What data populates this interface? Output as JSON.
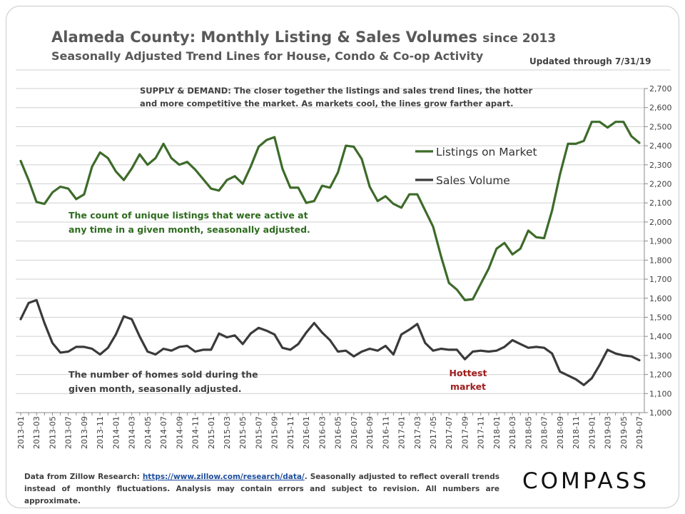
{
  "header": {
    "title": "Alameda County: Monthly Listing & Sales Volumes",
    "title_suffix": "since 2013",
    "subtitle": "Seasonally Adjusted Trend Lines for House, Condo & Co-op Activity",
    "updated": "Updated through 7/31/19"
  },
  "footer": {
    "note_prefix": "Data from Zillow Research: ",
    "link_text": "https://www.zillow.com/research/data/",
    "note_suffix": ". Seasonally adjusted to reflect overall trends instead of monthly fluctuations. Analysis may contain errors and subject to revision. All numbers are approximate.",
    "brand": "COMPASS"
  },
  "colors": {
    "listings": "#3d6b2a",
    "sales": "#3a3a3a",
    "annotation_listings": "#2e6b1e",
    "annotation_sales": "#404040",
    "hottest": "#a11d1d",
    "grid": "#d0d0d0"
  },
  "chart_data": {
    "type": "line",
    "ylim": [
      1000,
      2700
    ],
    "yticks": [
      "1,000",
      "1,100",
      "1,200",
      "1,300",
      "1,400",
      "1,500",
      "1,600",
      "1,700",
      "1,800",
      "1,900",
      "2,000",
      "2,100",
      "2,200",
      "2,300",
      "2,400",
      "2,500",
      "2,600",
      "2,700"
    ],
    "ytick_values": [
      1000,
      1100,
      1200,
      1300,
      1400,
      1500,
      1600,
      1700,
      1800,
      1900,
      2000,
      2100,
      2200,
      2300,
      2400,
      2500,
      2600,
      2700
    ],
    "x": [
      "2013-01",
      "2013-02",
      "2013-03",
      "2013-04",
      "2013-05",
      "2013-06",
      "2013-07",
      "2013-08",
      "2013-09",
      "2013-10",
      "2013-11",
      "2013-12",
      "2014-01",
      "2014-02",
      "2014-03",
      "2014-04",
      "2014-05",
      "2014-06",
      "2014-07",
      "2014-08",
      "2014-09",
      "2014-10",
      "2014-11",
      "2014-12",
      "2015-01",
      "2015-02",
      "2015-03",
      "2015-04",
      "2015-05",
      "2015-06",
      "2015-07",
      "2015-08",
      "2015-09",
      "2015-10",
      "2015-11",
      "2015-12",
      "2016-01",
      "2016-02",
      "2016-03",
      "2016-04",
      "2016-05",
      "2016-06",
      "2016-07",
      "2016-08",
      "2016-09",
      "2016-10",
      "2016-11",
      "2016-12",
      "2017-01",
      "2017-02",
      "2017-03",
      "2017-04",
      "2017-05",
      "2017-06",
      "2017-07",
      "2017-08",
      "2017-09",
      "2017-10",
      "2017-11",
      "2017-12",
      "2018-01",
      "2018-02",
      "2018-03",
      "2018-04",
      "2018-05",
      "2018-06",
      "2018-07",
      "2018-08",
      "2018-09",
      "2018-10",
      "2018-11",
      "2018-12",
      "2019-01",
      "2019-02",
      "2019-03",
      "2019-04",
      "2019-05",
      "2019-06",
      "2019-07"
    ],
    "x_tick_labels": [
      "2013-01",
      "2013-03",
      "2013-05",
      "2013-07",
      "2013-09",
      "2013-11",
      "2014-01",
      "2014-03",
      "2014-05",
      "2014-07",
      "2014-09",
      "2014-11",
      "2015-01",
      "2015-03",
      "2015-05",
      "2015-07",
      "2015-09",
      "2015-11",
      "2016-01",
      "2016-03",
      "2016-05",
      "2016-07",
      "2016-09",
      "2016-11",
      "2017-01",
      "2017-03",
      "2017-05",
      "2017-07",
      "2017-09",
      "2017-11",
      "2018-01",
      "2018-03",
      "2018-05",
      "2018-07",
      "2018-09",
      "2018-11",
      "2019-01",
      "2019-03",
      "2019-05",
      "2019-07"
    ],
    "series": [
      {
        "name": "Listings on Market",
        "values": [
          2320,
          2220,
          2105,
          2095,
          2155,
          2185,
          2175,
          2120,
          2145,
          2290,
          2365,
          2335,
          2265,
          2220,
          2280,
          2355,
          2300,
          2335,
          2410,
          2335,
          2300,
          2315,
          2275,
          2225,
          2175,
          2165,
          2220,
          2240,
          2200,
          2290,
          2395,
          2430,
          2445,
          2280,
          2180,
          2180,
          2100,
          2110,
          2190,
          2180,
          2260,
          2400,
          2395,
          2330,
          2185,
          2110,
          2135,
          2095,
          2075,
          2145,
          2145,
          2060,
          1975,
          1820,
          1680,
          1645,
          1590,
          1595,
          1675,
          1755,
          1860,
          1890,
          1830,
          1860,
          1955,
          1920,
          1915,
          2060,
          2250,
          2410,
          2410,
          2425,
          2525,
          2525,
          2495,
          2525,
          2525,
          2450,
          2415
        ]
      },
      {
        "name": "Sales Volume",
        "values": [
          1490,
          1575,
          1590,
          1470,
          1365,
          1315,
          1320,
          1345,
          1345,
          1335,
          1305,
          1340,
          1410,
          1505,
          1490,
          1400,
          1320,
          1305,
          1335,
          1325,
          1345,
          1350,
          1320,
          1330,
          1330,
          1415,
          1395,
          1405,
          1360,
          1415,
          1445,
          1430,
          1410,
          1340,
          1330,
          1360,
          1420,
          1470,
          1420,
          1380,
          1320,
          1325,
          1295,
          1320,
          1335,
          1325,
          1350,
          1305,
          1410,
          1435,
          1465,
          1365,
          1325,
          1335,
          1330,
          1330,
          1280,
          1320,
          1325,
          1320,
          1325,
          1345,
          1380,
          1360,
          1340,
          1345,
          1340,
          1310,
          1215,
          1195,
          1175,
          1145,
          1180,
          1250,
          1330,
          1310,
          1300,
          1295,
          1275
        ]
      }
    ],
    "legend": {
      "placement": "inside-right",
      "items": [
        "Listings on Market",
        "Sales Volume"
      ]
    },
    "annotations": {
      "supply_demand": [
        "SUPPLY & DEMAND: The closer together the listings and sales trend lines, the hotter",
        "and more competitive the market. As markets cool, the lines grow farther apart."
      ],
      "listings_note": [
        "The count of unique listings that were active at",
        "any time in a given month, seasonally adjusted."
      ],
      "sales_note": [
        "The number of homes sold during the",
        "given month, seasonally adjusted."
      ],
      "hottest": [
        "Hottest",
        "market"
      ]
    },
    "grid": true
  }
}
